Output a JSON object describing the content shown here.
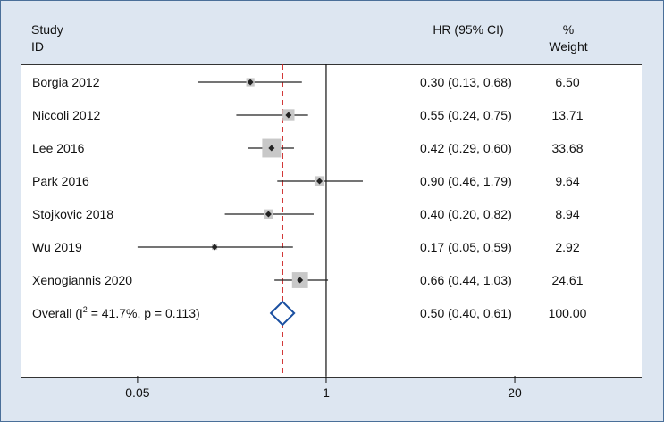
{
  "chart_data": {
    "type": "forest",
    "header": {
      "study_line1": "Study",
      "study_line2": "ID",
      "hr": "HR (95% CI)",
      "weight_line1": "%",
      "weight_line2": "Weight"
    },
    "studies": [
      {
        "name": "Borgia 2012",
        "hr": 0.3,
        "lo": 0.13,
        "hi": 0.68,
        "ci_text": "0.30 (0.13, 0.68)",
        "weight": 6.5,
        "weight_text": "6.50"
      },
      {
        "name": "Niccoli 2012",
        "hr": 0.55,
        "lo": 0.24,
        "hi": 0.75,
        "ci_text": "0.55 (0.24, 0.75)",
        "weight": 13.71,
        "weight_text": "13.71"
      },
      {
        "name": "Lee 2016",
        "hr": 0.42,
        "lo": 0.29,
        "hi": 0.6,
        "ci_text": "0.42 (0.29, 0.60)",
        "weight": 33.68,
        "weight_text": "33.68"
      },
      {
        "name": "Park 2016",
        "hr": 0.9,
        "lo": 0.46,
        "hi": 1.79,
        "ci_text": "0.90 (0.46, 1.79)",
        "weight": 9.64,
        "weight_text": "9.64"
      },
      {
        "name": "Stojkovic 2018",
        "hr": 0.4,
        "lo": 0.2,
        "hi": 0.82,
        "ci_text": "0.40 (0.20, 0.82)",
        "weight": 8.94,
        "weight_text": "8.94"
      },
      {
        "name": "Wu 2019",
        "hr": 0.17,
        "lo": 0.05,
        "hi": 0.59,
        "ci_text": "0.17 (0.05, 0.59)",
        "weight": 2.92,
        "weight_text": "2.92"
      },
      {
        "name": "Xenogiannis 2020",
        "hr": 0.66,
        "lo": 0.44,
        "hi": 1.03,
        "ci_text": "0.66 (0.44, 1.03)",
        "weight": 24.61,
        "weight_text": "24.61"
      }
    ],
    "overall": {
      "label_prefix": "Overall (I",
      "label_sup": "2",
      "label_suffix": " = 41.7%, p = 0.113)",
      "hr": 0.5,
      "lo": 0.4,
      "hi": 0.61,
      "ci_text": "0.50 (0.40, 0.61)",
      "weight_text": "100.00"
    },
    "x_scale": "log",
    "xlim": [
      0.0078,
      150
    ],
    "x_ticks": [
      {
        "value": 0.05,
        "label": "0.05"
      },
      {
        "value": 1,
        "label": "1"
      },
      {
        "value": 20,
        "label": "20"
      }
    ],
    "null_line": 1,
    "colors": {
      "background": "#dde6f1",
      "frame": "#4a6f99",
      "weight_box": "#c8c8c8",
      "point": "#222222",
      "ci_line": "#222222",
      "overall_line": "#cc1f1f",
      "diamond": "#1a4fa0"
    }
  }
}
